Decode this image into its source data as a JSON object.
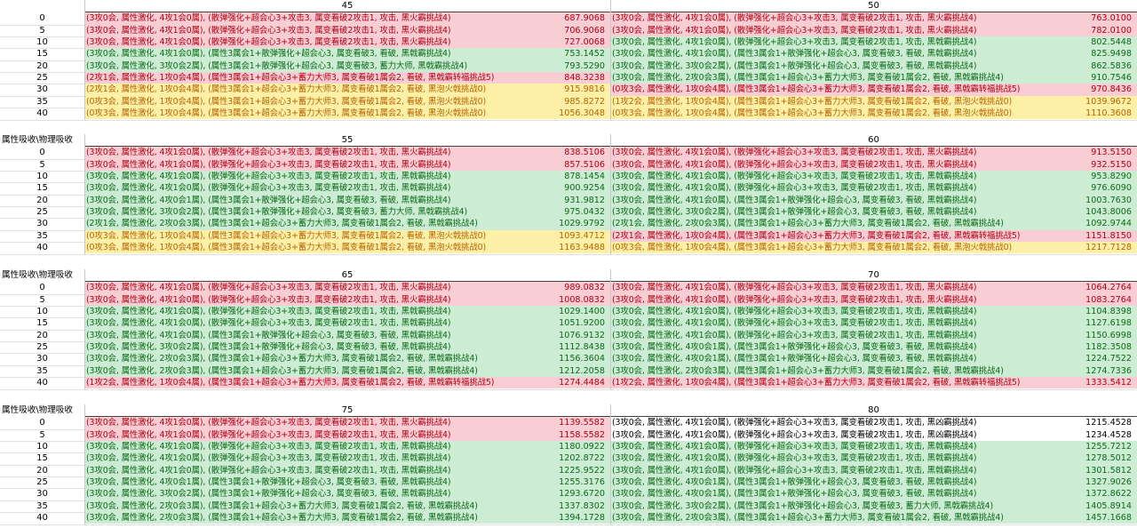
{
  "corner_label": "属性吸收\\物理吸收",
  "row_labels": [
    "0",
    "5",
    "10",
    "15",
    "20",
    "25",
    "30",
    "35",
    "40"
  ],
  "blocks": [
    {
      "cols": [
        {
          "header": "45",
          "rows": [
            {
              "t": "(3攻0会, 属性激化, 4攻1会0属), (散弹强化+超会心3+攻击3, 属变看破2攻击1, 攻击, 黑火霸挑战4)",
              "v": "687.9068",
              "c": "red"
            },
            {
              "t": "(3攻0会, 属性激化, 4攻1会0属), (散弹强化+超会心3+攻击3, 属变看破2攻击1, 攻击, 黑火霸挑战4)",
              "v": "706.9068",
              "c": "red"
            },
            {
              "t": "(3攻0会, 属性激化, 4攻1会0属), (散弹强化+超会心3+攻击3, 属变看破2攻击1, 攻击, 黑火霸挑战4)",
              "v": "727.0068",
              "c": "red"
            },
            {
              "t": "(3攻0会, 属性激化, 4攻1会0属), (属性3属会1+散弹强化+超会心3, 属变看破3, 看破, 黑戟霸挑战4)",
              "v": "753.1452",
              "c": "green"
            },
            {
              "t": "(3攻0会, 属性激化, 3攻0会2属), (属性3属会1+散弹强化+超会心3, 属变看破3, 蓄力大师, 黑戟霸挑战4)",
              "v": "793.5290",
              "c": "green"
            },
            {
              "t": "(2攻1会, 属性激化, 1攻0会4属), (属性3属会1+超会心3+蓄力大师3, 属变看破1属会2, 看破, 黑戟霸转福挑战5)",
              "v": "848.3238",
              "c": "red"
            },
            {
              "t": "(2攻1会, 属性激化, 1攻0会4属), (属性3属会1+超会心3+蓄力大师3, 属变看破1属会2, 看破, 黑泡火戟挑战0)",
              "v": "915.9816",
              "c": "yellow"
            },
            {
              "t": "(0攻3会, 属性激化, 1攻0会4属), (属性3属会1+超会心3+蓄力大师3, 属变看破1属会2, 看破, 黑泡火戟挑战0)",
              "v": "985.8272",
              "c": "yellow"
            },
            {
              "t": "(0攻3会, 属性激化, 1攻0会4属), (属性3属会1+超会心3+蓄力大师3, 属变看破1属会2, 看破, 黑泡火戟挑战0)",
              "v": "1056.3048",
              "c": "yellow"
            }
          ]
        },
        {
          "header": "50",
          "rows": [
            {
              "t": "(3攻0会, 属性激化, 4攻1会0属), (散弹强化+超会心3+攻击3, 属变看破2攻击1, 攻击, 黑火霸挑战4)",
              "v": "763.0100",
              "c": "red"
            },
            {
              "t": "(3攻0会, 属性激化, 4攻1会0属), (散弹强化+超会心3+攻击3, 属变看破2攻击1, 攻击, 黑火霸挑战4)",
              "v": "782.0100",
              "c": "red"
            },
            {
              "t": "(3攻0会, 属性激化, 4攻1会0属), (散弹强化+超会心3+攻击3, 属变看破2攻击1, 攻击, 黑戟霸挑战4)",
              "v": "802.5448",
              "c": "green"
            },
            {
              "t": "(3攻0会, 属性激化, 4攻1会0属), (属性3属会1+散弹强化+超会心3, 属变看破3, 看破, 黑戟霸挑战4)",
              "v": "825.9498",
              "c": "green"
            },
            {
              "t": "(3攻0会, 属性激化, 3攻0会2属), (属性3属会1+散弹强化+超会心3, 属变看破3, 看破, 黑戟霸挑战4)",
              "v": "862.5836",
              "c": "green"
            },
            {
              "t": "(3攻0会, 属性激化, 2攻0会3属), (属性3属会1+超会心3+蓄力大师3, 属变看破1属会2, 看破, 黑戟霸挑战4)",
              "v": "910.7546",
              "c": "green"
            },
            {
              "t": "(0攻3会, 属性激化, 1攻0会4属), (属性3属会1+超会心3+蓄力大师3, 属变看破1属会2, 看破, 黑戟霸转福挑战5)",
              "v": "970.8436",
              "c": "red"
            },
            {
              "t": "(1攻2会, 属性激化, 1攻0会4属), (属性3属会1+超会心3+蓄力大师3, 属变看破1属会2, 看破, 黑泡火戟挑战0)",
              "v": "1039.9672",
              "c": "yellow"
            },
            {
              "t": "(0攻3会, 属性激化, 1攻0会4属), (属性3属会1+超会心3+蓄力大师3, 属变看破1属会2, 看破, 黑泡火戟挑战0)",
              "v": "1110.3608",
              "c": "yellow"
            }
          ]
        }
      ]
    },
    {
      "cols": [
        {
          "header": "55",
          "rows": [
            {
              "t": "(3攻0会, 属性激化, 4攻1会0属), (散弹强化+超会心3+攻击3, 属变看破2攻击1, 攻击, 黑火霸挑战4)",
              "v": "838.5106",
              "c": "red"
            },
            {
              "t": "(3攻0会, 属性激化, 4攻1会0属), (散弹强化+超会心3+攻击3, 属变看破2攻击1, 攻击, 黑火霸挑战4)",
              "v": "857.5106",
              "c": "red"
            },
            {
              "t": "(3攻0会, 属性激化, 4攻1会0属), (散弹强化+超会心3+攻击3, 属变看破2攻击1, 攻击, 黑戟霸挑战4)",
              "v": "878.1454",
              "c": "green"
            },
            {
              "t": "(3攻0会, 属性激化, 4攻1会0属), (散弹强化+超会心3+攻击3, 属变看破2攻击1, 攻击, 黑戟霸挑战4)",
              "v": "900.9254",
              "c": "green"
            },
            {
              "t": "(3攻0会, 属性激化, 4攻0会1属), (属性3属会1+散弹强化+超会心3, 属变看破3, 看破, 黑戟霸挑战4)",
              "v": "931.9812",
              "c": "green"
            },
            {
              "t": "(3攻0会, 属性激化, 3攻0会2属), (属性3属会1+散弹强化+超会心3, 属变看破3, 蓄力大师, 黑戟霸挑战4)",
              "v": "975.0432",
              "c": "green"
            },
            {
              "t": "(2攻1会, 属性激化, 2攻0会3属), (属性3属会1+超会心3+蓄力大师3, 属变看破1属会2, 看破, 黑戟霸挑战4)",
              "v": "1029.9792",
              "c": "green"
            },
            {
              "t": "(0攻3会, 属性激化, 1攻0会4属), (属性3属会1+超会心3+蓄力大师3, 属变看破1属会2, 看破, 黑泡火戟挑战0)",
              "v": "1093.4712",
              "c": "yellow"
            },
            {
              "t": "(0攻3会, 属性激化, 1攻0会4属), (属性3属会1+超会心3+蓄力大师3, 属变看破1属会2, 看破, 黑泡火戟挑战0)",
              "v": "1163.9488",
              "c": "yellow"
            }
          ]
        },
        {
          "header": "60",
          "rows": [
            {
              "t": "(3攻0会, 属性激化, 4攻1会0属), (散弹强化+超会心3+攻击3, 属变看破2攻击1, 攻击, 黑火霸挑战4)",
              "v": "913.5150",
              "c": "red"
            },
            {
              "t": "(3攻0会, 属性激化, 4攻1会0属), (散弹强化+超会心3+攻击3, 属变看破2攻击1, 攻击, 黑火霸挑战4)",
              "v": "932.5150",
              "c": "red"
            },
            {
              "t": "(3攻0会, 属性激化, 4攻1会0属), (散弹强化+超会心3+攻击3, 属变看破2攻击1, 攻击, 黑戟霸挑战4)",
              "v": "953.8290",
              "c": "green"
            },
            {
              "t": "(3攻0会, 属性激化, 4攻1会0属), (散弹强化+超会心3+攻击3, 属变看破2攻击1, 攻击, 黑戟霸挑战4)",
              "v": "976.6090",
              "c": "green"
            },
            {
              "t": "(3攻0会, 属性激化, 4攻1会0属), (属性3属会1+散弹强化+超会心3, 属变看破3, 看破, 黑戟霸挑战4)",
              "v": "1003.7630",
              "c": "green"
            },
            {
              "t": "(3攻0会, 属性激化, 3攻0会2属), (属性3属会1+散弹强化+超会心3, 属变看破3, 看破, 黑戟霸挑战4)",
              "v": "1043.8006",
              "c": "green"
            },
            {
              "t": "(2攻1会, 属性激化, 2攻0会3属), (属性3属会1+超会心3+蓄力大师3, 属变看破1属会2, 看破, 黑戟霸挑战4)",
              "v": "1092.9744",
              "c": "green"
            },
            {
              "t": "(2攻1会, 属性激化, 1攻0会4属), (属性3属会1+超会心3+蓄力大师3, 属变看破1属会2, 看破, 黑戟霸转福挑战5)",
              "v": "1151.8150",
              "c": "red"
            },
            {
              "t": "(0攻3会, 属性激化, 1攻0会4属), (属性3属会1+超会心3+蓄力大师3, 属变看破1属会2, 看破, 黑泡火戟挑战0)",
              "v": "1217.7128",
              "c": "yellow"
            }
          ]
        }
      ]
    },
    {
      "cols": [
        {
          "header": "65",
          "rows": [
            {
              "t": "(3攻0会, 属性激化, 4攻1会0属), (散弹强化+超会心3+攻击3, 属变看破2攻击1, 攻击, 黑火霸挑战4)",
              "v": "989.0832",
              "c": "red"
            },
            {
              "t": "(3攻0会, 属性激化, 4攻1会0属), (散弹强化+超会心3+攻击3, 属变看破2攻击1, 攻击, 黑火霸挑战4)",
              "v": "1008.0832",
              "c": "red"
            },
            {
              "t": "(3攻0会, 属性激化, 4攻1会0属), (散弹强化+超会心3+攻击3, 属变看破2攻击1, 攻击, 黑戟霸挑战4)",
              "v": "1029.1400",
              "c": "green"
            },
            {
              "t": "(3攻0会, 属性激化, 4攻1会0属), (散弹强化+超会心3+攻击3, 属变看破2攻击1, 攻击, 黑戟霸挑战4)",
              "v": "1051.9200",
              "c": "green"
            },
            {
              "t": "(3攻0会, 属性激化, 4攻1会0属), (属性3属会1+散弹强化+超会心3, 属变看破3, 看破, 黑戟霸挑战4)",
              "v": "1076.9132",
              "c": "green"
            },
            {
              "t": "(3攻0会, 属性激化, 3攻0会2属), (属性3属会1+散弹强化+超会心3, 属变看破3, 看破, 黑戟霸挑战4)",
              "v": "1112.8438",
              "c": "green"
            },
            {
              "t": "(3攻0会, 属性激化, 2攻0会3属), (属性3属会1+超会心3+蓄力大师3, 属变看破1属会2, 看破, 黑戟霸挑战4)",
              "v": "1156.3604",
              "c": "green"
            },
            {
              "t": "(3攻0会, 属性激化, 2攻0会3属), (属性3属会1+超会心3+蓄力大师3, 属变看破1属会2, 看破, 黑戟霸挑战4)",
              "v": "1212.2058",
              "c": "green"
            },
            {
              "t": "(1攻2会, 属性激化, 1攻0会4属), (属性3属会1+超会心3+蓄力大师3, 属变看破1属会2, 看破, 黑戟霸转福挑战5)",
              "v": "1274.4484",
              "c": "red"
            }
          ]
        },
        {
          "header": "70",
          "rows": [
            {
              "t": "(3攻0会, 属性激化, 4攻1会0属), (散弹强化+超会心3+攻击3, 属变看破2攻击1, 攻击, 黑火霸挑战4)",
              "v": "1064.2764",
              "c": "red"
            },
            {
              "t": "(3攻0会, 属性激化, 4攻1会0属), (散弹强化+超会心3+攻击3, 属变看破2攻击1, 攻击, 黑火霸挑战4)",
              "v": "1083.2764",
              "c": "red"
            },
            {
              "t": "(3攻0会, 属性激化, 4攻1会0属), (散弹强化+超会心3+攻击3, 属变看破2攻击1, 攻击, 黑戟霸挑战4)",
              "v": "1104.8398",
              "c": "green"
            },
            {
              "t": "(3攻0会, 属性激化, 4攻1会0属), (散弹强化+超会心3+攻击3, 属变看破2攻击1, 攻击, 黑戟霸挑战4)",
              "v": "1127.6198",
              "c": "green"
            },
            {
              "t": "(3攻0会, 属性激化, 4攻1会0属), (散弹强化+超会心3+攻击3, 属变看破2攻击1, 攻击, 黑戟霸挑战4)",
              "v": "1150.6998",
              "c": "green"
            },
            {
              "t": "(3攻0会, 属性激化, 4攻0会1属), (属性3属会1+散弹强化+超会心3, 属变看破3, 看破, 黑戟霸挑战4)",
              "v": "1182.3508",
              "c": "green"
            },
            {
              "t": "(3攻0会, 属性激化, 4攻0会1属), (属性3属会1+散弹强化+超会心3, 属变看破3, 看破, 黑戟霸挑战4)",
              "v": "1224.7522",
              "c": "green"
            },
            {
              "t": "(3攻0会, 属性激化, 2攻0会3属), (属性3属会1+超会心3+蓄力大师3, 属变看破1属会2, 看破, 黑戟霸挑战4)",
              "v": "1274.7336",
              "c": "green"
            },
            {
              "t": "(1攻2会, 属性激化, 1攻0会4属), (属性3属会1+超会心3+蓄力大师3, 属变看破1属会2, 看破, 黑戟霸转福挑战5)",
              "v": "1333.5412",
              "c": "red"
            }
          ]
        }
      ]
    },
    {
      "cols": [
        {
          "header": "75",
          "rows": [
            {
              "t": "(3攻0会, 属性激化, 4攻1会0属), (散弹强化+超会心3+攻击3, 属变看破2攻击1, 攻击, 黑火霸挑战4)",
              "v": "1139.5582",
              "c": "red"
            },
            {
              "t": "(3攻0会, 属性激化, 4攻1会0属), (散弹强化+超会心3+攻击3, 属变看破2攻击1, 攻击, 黑火霸挑战4)",
              "v": "1158.5582",
              "c": "red"
            },
            {
              "t": "(3攻0会, 属性激化, 4攻1会0属), (散弹强化+超会心3+攻击3, 属变看破2攻击1, 攻击, 黑戟霸挑战4)",
              "v": "1180.0922",
              "c": "green"
            },
            {
              "t": "(3攻0会, 属性激化, 4攻1会0属), (散弹强化+超会心3+攻击3, 属变看破2攻击1, 攻击, 黑戟霸挑战4)",
              "v": "1202.8722",
              "c": "green"
            },
            {
              "t": "(3攻0会, 属性激化, 4攻1会0属), (散弹强化+超会心3+攻击3, 属变看破2攻击1, 攻击, 黑戟霸挑战4)",
              "v": "1225.9522",
              "c": "green"
            },
            {
              "t": "(3攻0会, 属性激化, 4攻0会1属), (属性3属会1+散弹强化+超会心3, 属变看破3, 看破, 黑戟霸挑战4)",
              "v": "1255.3176",
              "c": "green"
            },
            {
              "t": "(3攻0会, 属性激化, 3攻0会2属), (属性3属会1+散弹强化+超会心3, 属变看破3, 看破, 黑戟霸挑战4)",
              "v": "1293.6720",
              "c": "green"
            },
            {
              "t": "(3攻0会, 属性激化, 2攻0会3属), (属性3属会1+超会心3+蓄力大师3, 属变看破1属会2, 看破, 黑戟霸挑战4)",
              "v": "1337.8302",
              "c": "green"
            },
            {
              "t": "(3攻0会, 属性激化, 2攻0会3属), (属性3属会1+超会心3+蓄力大师3, 属变看破1属会2, 看破, 黑戟霸挑战4)",
              "v": "1394.1728",
              "c": "green"
            }
          ]
        },
        {
          "header": "80",
          "rows": [
            {
              "t": "(3攻0会, 属性激化, 4攻1会0属), (散弹强化+超会心3+攻击3, 属变看破2攻击1, 攻击, 黑凶霸挑战4)",
              "v": "1215.4528",
              "c": "white"
            },
            {
              "t": "(3攻0会, 属性激化, 4攻1会0属), (散弹强化+超会心3+攻击3, 属变看破2攻击1, 攻击, 黑凶霸挑战4)",
              "v": "1234.4528",
              "c": "white"
            },
            {
              "t": "(3攻0会, 属性激化, 4攻1会0属), (散弹强化+超会心3+攻击3, 属变看破2攻击1, 攻击, 黑戟霸挑战4)",
              "v": "1255.7212",
              "c": "green"
            },
            {
              "t": "(3攻0会, 属性激化, 4攻1会0属), (散弹强化+超会心3+攻击3, 属变看破2攻击1, 攻击, 黑戟霸挑战4)",
              "v": "1278.5012",
              "c": "green"
            },
            {
              "t": "(3攻0会, 属性激化, 4攻1会0属), (散弹强化+超会心3+攻击3, 属变看破2攻击1, 攻击, 黑戟霸挑战4)",
              "v": "1301.5812",
              "c": "green"
            },
            {
              "t": "(3攻0会, 属性激化, 4攻0会1属), (属性3属会1+散弹强化+超会心3, 属变看破3, 看破, 黑戟霸挑战4)",
              "v": "1327.9026",
              "c": "green"
            },
            {
              "t": "(3攻0会, 属性激化, 4攻0会1属), (属性3属会1+散弹强化+超会心3, 属变看破3, 看破, 黑戟霸挑战4)",
              "v": "1372.8622",
              "c": "green"
            },
            {
              "t": "(3攻0会, 属性激化, 3攻0会2属), (属性3属会1+散弹强化+超会心3, 属变看破3, 蓄力大师, 黑戟霸挑战4)",
              "v": "1405.8914",
              "c": "green"
            },
            {
              "t": "(3攻0会, 属性激化, 2攻0会3属), (属性3属会1+超会心3+蓄力大师3, 属变看破1属会2, 看破, 黑戟霸挑战4)",
              "v": "1457.1668",
              "c": "green"
            }
          ]
        }
      ]
    }
  ],
  "colors": {
    "red": "#f9cdd4",
    "green": "#ccecd3",
    "yellow": "#fff0a8",
    "white": "#ffffff"
  }
}
